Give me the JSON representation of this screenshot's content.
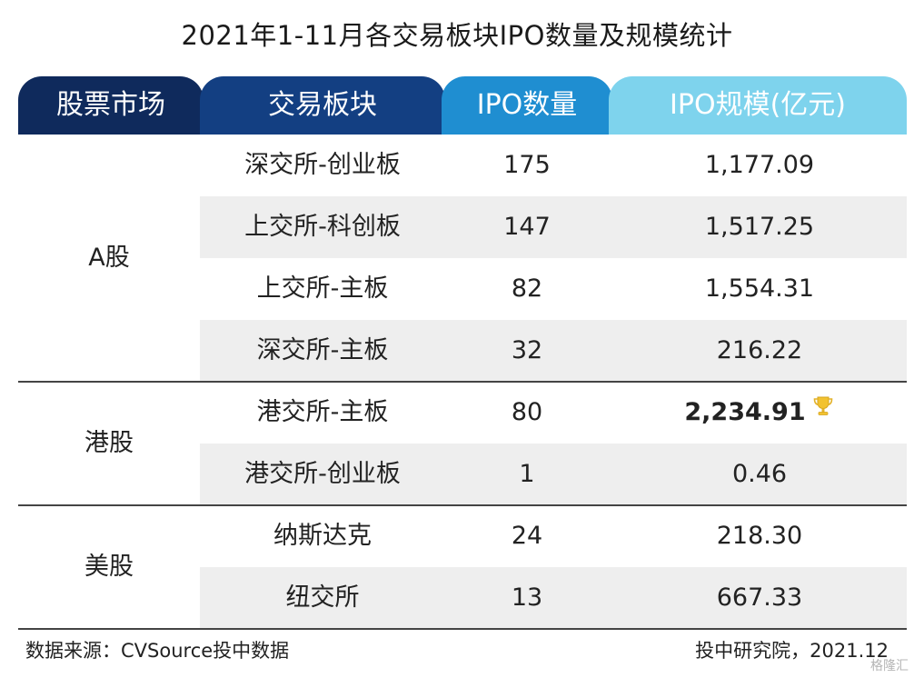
{
  "chart_data": {
    "type": "table",
    "title": "2021年1-11月各交易板块IPO数量及规模统计",
    "columns": [
      "股票市场",
      "交易板块",
      "IPO数量",
      "IPO规模(亿元)"
    ],
    "groups": [
      {
        "market": "A股",
        "rows": [
          {
            "board": "深交所-创业板",
            "count": "175",
            "scale": "1,177.09"
          },
          {
            "board": "上交所-科创板",
            "count": "147",
            "scale": "1,517.25"
          },
          {
            "board": "上交所-主板",
            "count": "82",
            "scale": "1,554.31"
          },
          {
            "board": "深交所-主板",
            "count": "32",
            "scale": "216.22"
          }
        ]
      },
      {
        "market": "港股",
        "rows": [
          {
            "board": "港交所-主板",
            "count": "80",
            "scale": "2,234.91",
            "highlight": true
          },
          {
            "board": "港交所-创业板",
            "count": "1",
            "scale": "0.46"
          }
        ]
      },
      {
        "market": "美股",
        "rows": [
          {
            "board": "纳斯达克",
            "count": "24",
            "scale": "218.30"
          },
          {
            "board": "纽交所",
            "count": "13",
            "scale": "667.33"
          }
        ]
      }
    ],
    "colors": {
      "header_market": "#0f2a5c",
      "header_board": "#133f82",
      "header_count": "#1f8ed1",
      "header_scale": "#7ed3ed",
      "row_shade": "#eeeeee"
    }
  },
  "footer": {
    "source": "数据来源：CVSource投中数据",
    "credit": "投中研究院，2021.12"
  },
  "watermark": "格隆汇",
  "icons": {
    "highlight": "trophy-icon"
  }
}
